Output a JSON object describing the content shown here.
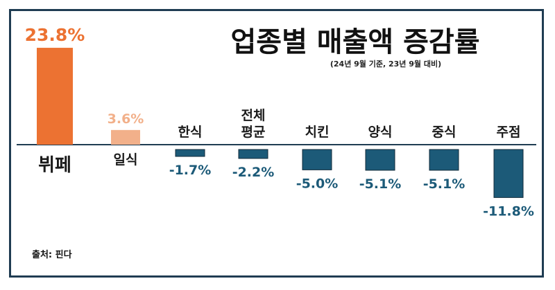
{
  "chart_data": {
    "type": "bar",
    "title": "업종별 매출액 증감률",
    "subtitle": "(24년 9월 기준, 23년 9월 대비)",
    "source": "출처: 핀다",
    "categories": [
      "뷔페",
      "일식",
      "한식",
      "전체 평균",
      "치킨",
      "양식",
      "중식",
      "주점"
    ],
    "values": [
      23.8,
      3.6,
      -1.7,
      -2.2,
      -5.0,
      -5.1,
      -5.1,
      -11.8
    ],
    "value_labels": [
      "23.8%",
      "3.6%",
      "-1.7%",
      "-2.2%",
      "-5.0%",
      "-5.1%",
      "-5.1%",
      "-11.8%"
    ],
    "colors": {
      "highlight_positive": "#ec7232",
      "positive": "#f2b08a",
      "negative": "#1c5a78",
      "negative_label": "#1c5a78",
      "baseline": "#1f3c52"
    },
    "xlabel": "",
    "ylabel": "",
    "grid": false,
    "legend": "none"
  }
}
